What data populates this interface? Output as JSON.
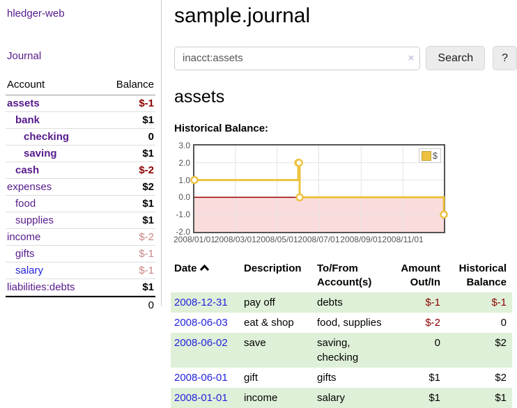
{
  "app": {
    "brand": "hledger-web",
    "nav_journal": "Journal"
  },
  "sidebar": {
    "col_account": "Account",
    "col_balance": "Balance",
    "accounts": [
      {
        "name": "assets",
        "balance": "$-1"
      },
      {
        "name": "bank",
        "balance": "$1"
      },
      {
        "name": "checking",
        "balance": "0"
      },
      {
        "name": "saving",
        "balance": "$1"
      },
      {
        "name": "cash",
        "balance": "$-2"
      },
      {
        "name": "expenses",
        "balance": "$2"
      },
      {
        "name": "food",
        "balance": "$1"
      },
      {
        "name": "supplies",
        "balance": "$1"
      },
      {
        "name": "income",
        "balance": "$-2"
      },
      {
        "name": "gifts",
        "balance": "$-1"
      },
      {
        "name": "salary",
        "balance": "$-1"
      },
      {
        "name": "liabilities:debts",
        "balance": "$1"
      }
    ],
    "total": "0"
  },
  "main": {
    "title": "sample.journal",
    "search": {
      "value": "inacct:assets",
      "clear": "×",
      "button": "Search",
      "help": "?"
    },
    "account_heading": "assets",
    "chart_heading": "Historical Balance:"
  },
  "chart_data": {
    "type": "line",
    "step": true,
    "title": "Historical Balance:",
    "legend": {
      "position": "top-right"
    },
    "series": [
      {
        "name": "$",
        "points": [
          [
            "2008-01-01",
            1
          ],
          [
            "2008-06-01",
            2
          ],
          [
            "2008-06-02",
            2
          ],
          [
            "2008-06-03",
            0
          ],
          [
            "2008-12-31",
            -1
          ]
        ]
      }
    ],
    "xlim": [
      "2008-01-01",
      "2008-12-31"
    ],
    "ylim": [
      -2,
      3
    ],
    "x_ticks": [
      {
        "date": "2008-01-01",
        "label": "2008/01/01"
      },
      {
        "date": "2008-03-01",
        "label": "2008/03/01"
      },
      {
        "date": "2008-05-01",
        "label": "2008/05/01"
      },
      {
        "date": "2008-07-01",
        "label": "2008/07/01"
      },
      {
        "date": "2008-09-01",
        "label": "2008/09/01"
      },
      {
        "date": "2008-11-01",
        "label": "2008/11/01"
      }
    ],
    "y_ticks": [
      {
        "value": 3,
        "label": "3.0"
      },
      {
        "value": 2,
        "label": "2.0"
      },
      {
        "value": 1,
        "label": "1.0"
      },
      {
        "value": 0,
        "label": "0.0"
      },
      {
        "value": -1,
        "label": "-1.0"
      },
      {
        "value": -2,
        "label": "-2.0"
      }
    ],
    "colors": {
      "line": "#edc240",
      "marker_fill": "#ffffff",
      "negative_fill": "#fbdcdc",
      "zero_line": "#990000",
      "grid": "#e3e3e3",
      "border": "#545454"
    }
  },
  "register": {
    "headers": {
      "date": "Date",
      "description": "Description",
      "accounts": "To/From Account(s)",
      "amount": "Amount Out/In",
      "balance": "Historical Balance"
    },
    "rows": [
      {
        "date": "2008-12-31",
        "description": "pay off",
        "accounts": "debts",
        "amount": "$-1",
        "balance": "$-1"
      },
      {
        "date": "2008-06-03",
        "description": "eat & shop",
        "accounts": "food, supplies",
        "amount": "$-2",
        "balance": "0"
      },
      {
        "date": "2008-06-02",
        "description": "save",
        "accounts": "saving, checking",
        "amount": "0",
        "balance": "$2"
      },
      {
        "date": "2008-06-01",
        "description": "gift",
        "accounts": "gifts",
        "amount": "$1",
        "balance": "$2"
      },
      {
        "date": "2008-01-01",
        "description": "income",
        "accounts": "salary",
        "amount": "$1",
        "balance": "$1"
      }
    ]
  }
}
